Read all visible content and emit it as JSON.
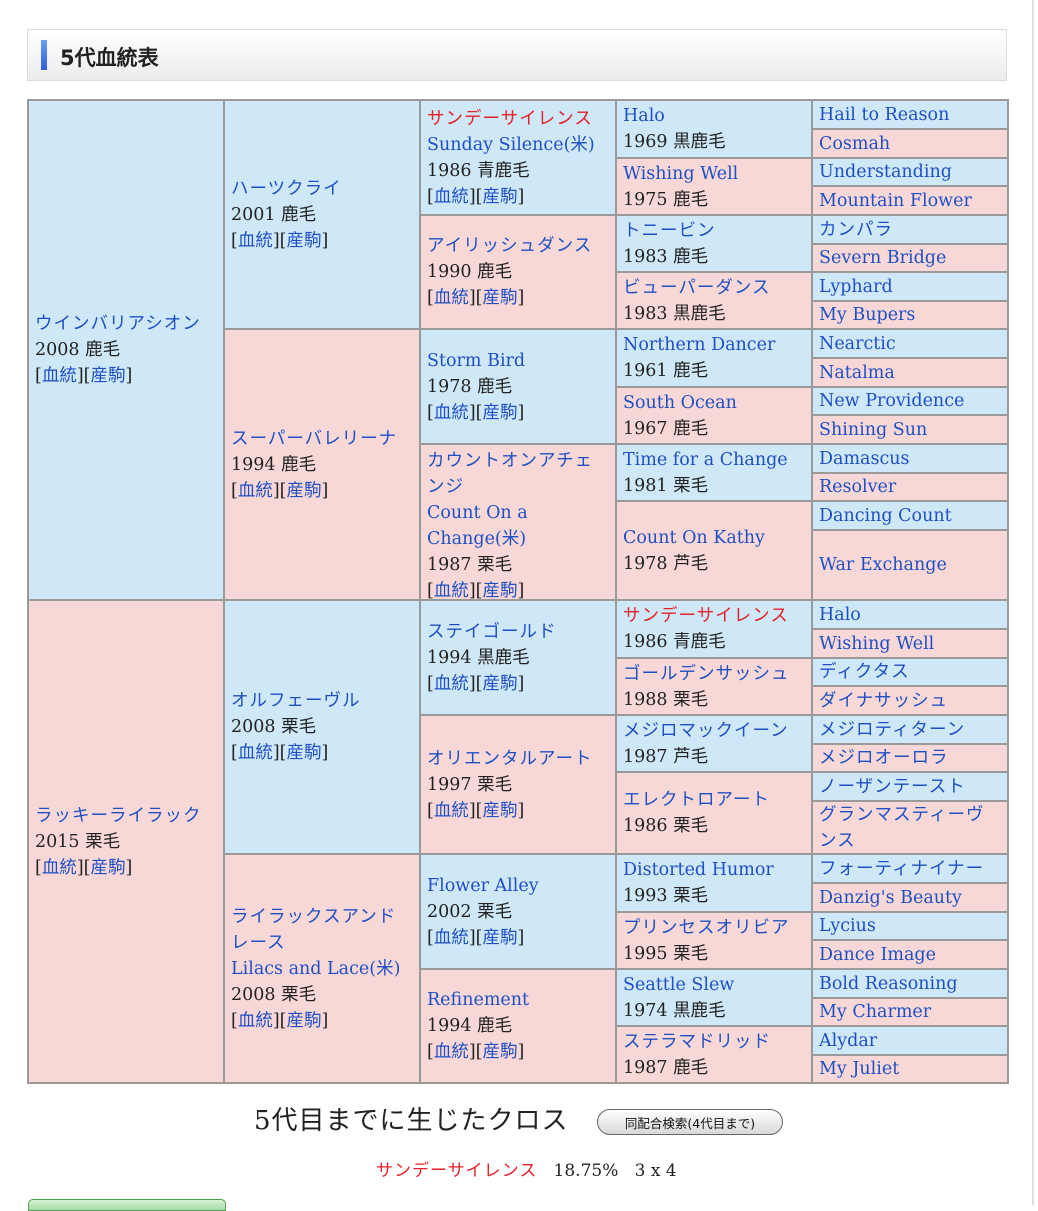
{
  "section": {
    "title": "5代血統表"
  },
  "links": {
    "pedigree": "血統",
    "offspring": "産駒"
  },
  "pedigree": {
    "g1": [
      {
        "name": "ウインバリアシオン",
        "info": "2008 鹿毛"
      },
      {
        "name": "ラッキーライラック",
        "info": "2015 栗毛"
      }
    ],
    "g2": [
      {
        "name": "ハーツクライ",
        "info": "2001 鹿毛"
      },
      {
        "name": "スーパーバレリーナ",
        "info": "1994 鹿毛"
      },
      {
        "name": "オルフェーヴル",
        "info": "2008 栗毛"
      },
      {
        "name": "ライラックスアンドレース",
        "name2": "Lilacs and Lace(米)",
        "info": "2008 栗毛"
      }
    ],
    "g3": [
      {
        "name": "サンデーサイレンス",
        "name2": "Sunday Silence(米)",
        "info": "1986 青鹿毛"
      },
      {
        "name": "アイリッシュダンス",
        "info": "1990 鹿毛"
      },
      {
        "name": "Storm Bird",
        "info": "1978 鹿毛"
      },
      {
        "name": "カウントオンアチェンジ",
        "name2": "Count On a Change(米)",
        "info": "1987 栗毛"
      },
      {
        "name": "ステイゴールド",
        "info": "1994 黒鹿毛"
      },
      {
        "name": "オリエンタルアート",
        "info": "1997 栗毛"
      },
      {
        "name": "Flower Alley",
        "info": "2002 栗毛"
      },
      {
        "name": "Refinement",
        "info": "1994 鹿毛"
      }
    ],
    "g4": [
      {
        "name": "Halo",
        "info": "1969 黒鹿毛"
      },
      {
        "name": "Wishing Well",
        "info": "1975 鹿毛"
      },
      {
        "name": "トニービン",
        "info": "1983 鹿毛"
      },
      {
        "name": "ビューパーダンス",
        "info": "1983 黒鹿毛"
      },
      {
        "name": "Northern Dancer",
        "info": "1961 鹿毛"
      },
      {
        "name": "South Ocean",
        "info": "1967 鹿毛"
      },
      {
        "name": "Time for a Change",
        "info": "1981 栗毛"
      },
      {
        "name": "Count On Kathy",
        "info": "1978 芦毛"
      },
      {
        "name": "サンデーサイレンス",
        "info": "1986 青鹿毛"
      },
      {
        "name": "ゴールデンサッシュ",
        "info": "1988 栗毛"
      },
      {
        "name": "メジロマックイーン",
        "info": "1987 芦毛"
      },
      {
        "name": "エレクトロアート",
        "info": "1986 栗毛"
      },
      {
        "name": "Distorted Humor",
        "info": "1993 栗毛"
      },
      {
        "name": "プリンセスオリビア",
        "info": "1995 栗毛"
      },
      {
        "name": "Seattle Slew",
        "info": "1974 黒鹿毛"
      },
      {
        "name": "ステラマドリッド",
        "info": "1987 鹿毛"
      }
    ],
    "g5": [
      "Hail to Reason",
      "Cosmah",
      "Understanding",
      "Mountain Flower",
      "カンパラ",
      "Severn Bridge",
      "Lyphard",
      "My Bupers",
      "Nearctic",
      "Natalma",
      "New Providence",
      "Shining Sun",
      "Damascus",
      "Resolver",
      "Dancing Count",
      "War Exchange",
      "Halo",
      "Wishing Well",
      "ディクタス",
      "ダイナサッシュ",
      "メジロティターン",
      "メジロオーロラ",
      "ノーザンテースト",
      "グランマスティーヴンス",
      "フォーティナイナー",
      "Danzig's Beauty",
      "Lycius",
      "Dance Image",
      "Bold Reasoning",
      "My Charmer",
      "Alydar",
      "My Juliet"
    ]
  },
  "cross": {
    "title": "5代目までに生じたクロス",
    "button": "同配合検索(4代目まで)",
    "name": "サンデーサイレンス",
    "percent": "18.75%",
    "pattern": "3 x 4"
  },
  "colors": {
    "male": "#cfe8f8",
    "female": "#f8d8d6",
    "link": "#1f4fc4",
    "cross": "#e4212a"
  }
}
